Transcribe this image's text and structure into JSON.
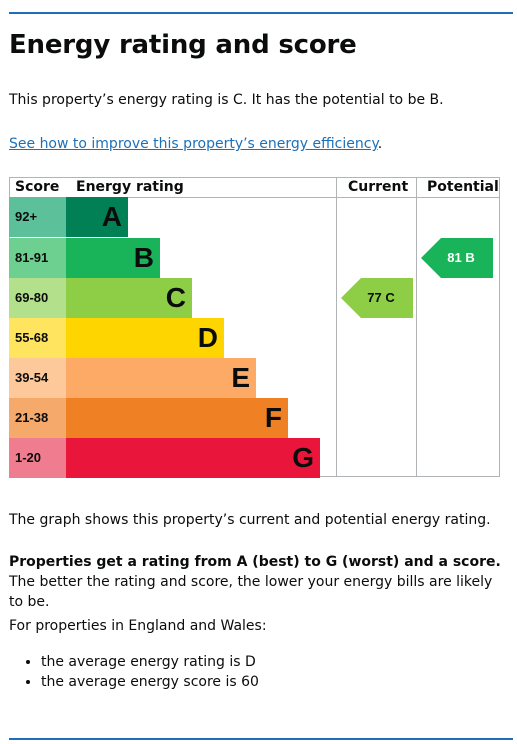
{
  "heading": "Energy rating and score",
  "intro": "This property’s energy rating is C. It has the potential to be B.",
  "improve_link": "See how to improve this property’s energy efficiency",
  "improve_link_suffix": ".",
  "table": {
    "headers": {
      "score": "Score",
      "rating": "Energy rating",
      "current": "Current",
      "potential": "Potential"
    },
    "bands": [
      {
        "range": "92+",
        "letter": "A",
        "color": "#008054",
        "score_bg": "#5cc19a"
      },
      {
        "range": "81-91",
        "letter": "B",
        "color": "#19b459",
        "score_bg": "#6ed090"
      },
      {
        "range": "69-80",
        "letter": "C",
        "color": "#8dce46",
        "score_bg": "#b3e08a"
      },
      {
        "range": "55-68",
        "letter": "D",
        "color": "#ffd500",
        "score_bg": "#ffe45f"
      },
      {
        "range": "39-54",
        "letter": "E",
        "color": "#fcaa65",
        "score_bg": "#fdc89a"
      },
      {
        "range": "21-38",
        "letter": "F",
        "color": "#ef8023",
        "score_bg": "#f5a96a"
      },
      {
        "range": "1-20",
        "letter": "G",
        "color": "#e9153b",
        "score_bg": "#f07c90"
      }
    ],
    "current": {
      "label": "77 C",
      "band": "C",
      "color": "#8dce46"
    },
    "potential": {
      "label": "81 B",
      "band": "B",
      "color": "#19b459"
    }
  },
  "graph_note": "The graph shows this property’s current and potential energy rating.",
  "rating_note_bold": "Properties get a rating from A (best) to G (worst) and a score.",
  "rating_note_rest": " The better the rating and score, the lower your energy bills are likely to be.",
  "england_label": "For properties in England and Wales:",
  "averages": [
    "the average energy rating is D",
    "the average energy score is 60"
  ]
}
